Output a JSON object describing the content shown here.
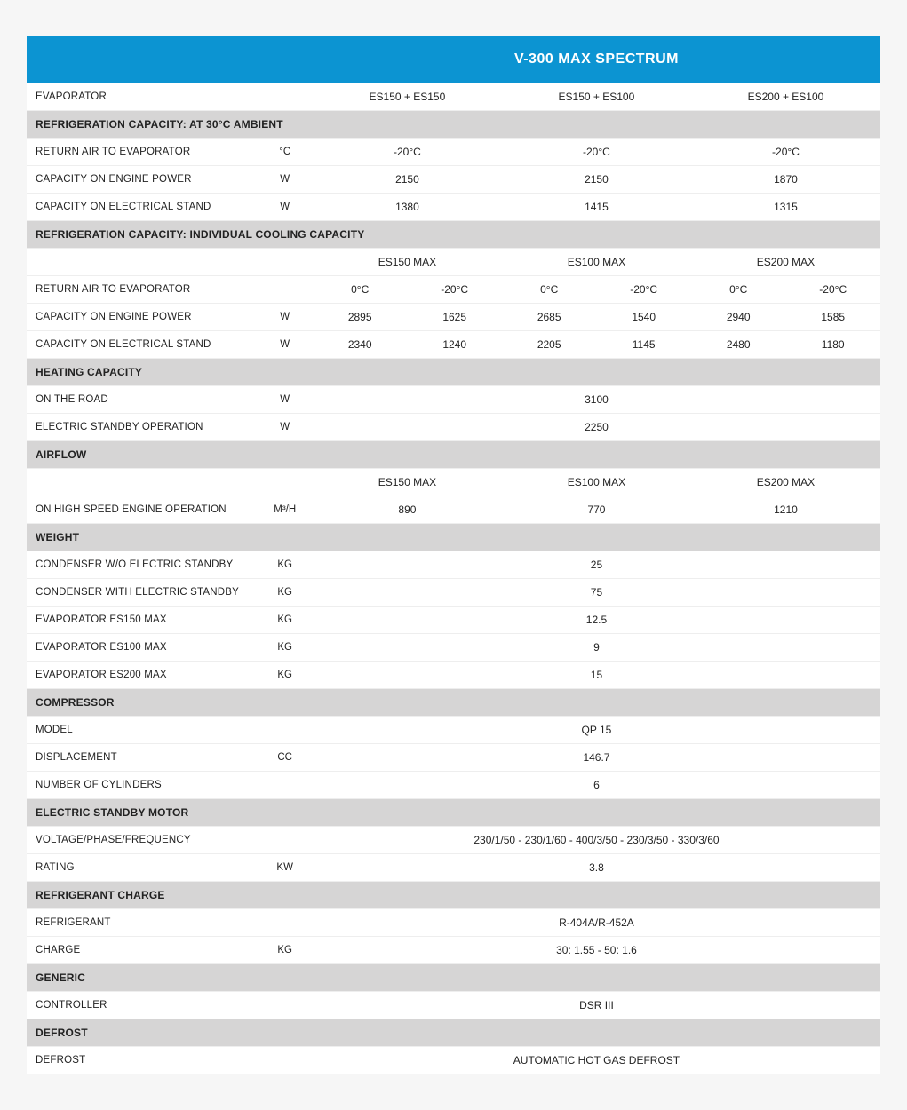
{
  "title": "V-300 MAX SPECTRUM",
  "evaporator": {
    "label": "EVAPORATOR",
    "c1": "ES150 + ES150",
    "c2": "ES150 + ES100",
    "c3": "ES200 + ES100"
  },
  "refcap30": {
    "section": "REFRIGERATION CAPACITY: AT 30°C AMBIENT",
    "return_air": {
      "label": "RETURN AIR TO EVAPORATOR",
      "unit": "°C",
      "c1": "-20°C",
      "c2": "-20°C",
      "c3": "-20°C"
    },
    "cap_engine": {
      "label": "CAPACITY ON ENGINE POWER",
      "unit": "W",
      "c1": "2150",
      "c2": "2150",
      "c3": "1870"
    },
    "cap_elec": {
      "label": "CAPACITY ON ELECTRICAL STAND",
      "unit": "W",
      "c1": "1380",
      "c2": "1415",
      "c3": "1315"
    }
  },
  "refcap_ind": {
    "section": "REFRIGERATION CAPACITY: INDIVIDUAL COOLING CAPACITY",
    "sub": {
      "c1": "ES150 MAX",
      "c2": "ES100 MAX",
      "c3": "ES200 MAX"
    },
    "return_air": {
      "label": "RETURN AIR TO EVAPORATOR",
      "unit": "",
      "c1a": "0°C",
      "c1b": "-20°C",
      "c2a": "0°C",
      "c2b": "-20°C",
      "c3a": "0°C",
      "c3b": "-20°C"
    },
    "cap_engine": {
      "label": "CAPACITY ON ENGINE POWER",
      "unit": "W",
      "c1a": "2895",
      "c1b": "1625",
      "c2a": "2685",
      "c2b": "1540",
      "c3a": "2940",
      "c3b": "1585"
    },
    "cap_elec": {
      "label": "CAPACITY ON ELECTRICAL STAND",
      "unit": "W",
      "c1a": "2340",
      "c1b": "1240",
      "c2a": "2205",
      "c2b": "1145",
      "c3a": "2480",
      "c3b": "1180"
    }
  },
  "heating": {
    "section": "HEATING CAPACITY",
    "road": {
      "label": "ON THE ROAD",
      "unit": "W",
      "v": "3100"
    },
    "standby": {
      "label": "ELECTRIC STANDBY OPERATION",
      "unit": "W",
      "v": "2250"
    }
  },
  "airflow": {
    "section": "AIRFLOW",
    "sub": {
      "c1": "ES150 MAX",
      "c2": "ES100 MAX",
      "c3": "ES200 MAX"
    },
    "high": {
      "label": "ON HIGH SPEED ENGINE OPERATION",
      "unit": "M³/H",
      "c1": "890",
      "c2": "770",
      "c3": "1210"
    }
  },
  "weight": {
    "section": "WEIGHT",
    "cond_wo": {
      "label": "CONDENSER W/O ELECTRIC STANDBY",
      "unit": "KG",
      "v": "25"
    },
    "cond_with": {
      "label": "CONDENSER WITH ELECTRIC STANDBY",
      "unit": "KG",
      "v": "75"
    },
    "e150": {
      "label": "EVAPORATOR ES150 MAX",
      "unit": "KG",
      "v": "12.5"
    },
    "e100": {
      "label": "EVAPORATOR ES100 MAX",
      "unit": "KG",
      "v": "9"
    },
    "e200": {
      "label": "EVAPORATOR ES200 MAX",
      "unit": "KG",
      "v": "15"
    }
  },
  "compressor": {
    "section": "COMPRESSOR",
    "model": {
      "label": "MODEL",
      "unit": "",
      "v": "QP 15"
    },
    "disp": {
      "label": "DISPLACEMENT",
      "unit": "CC",
      "v": "146.7"
    },
    "cyl": {
      "label": "NUMBER OF CYLINDERS",
      "unit": "",
      "v": "6"
    }
  },
  "motor": {
    "section": "ELECTRIC STANDBY MOTOR",
    "vpf": {
      "label": "VOLTAGE/PHASE/FREQUENCY",
      "unit": "",
      "v": "230/1/50 - 230/1/60 - 400/3/50 - 230/3/50 - 330/3/60"
    },
    "rating": {
      "label": "RATING",
      "unit": "KW",
      "v": "3.8"
    }
  },
  "refrigerant": {
    "section": "REFRIGERANT CHARGE",
    "type": {
      "label": "REFRIGERANT",
      "unit": "",
      "v": "R-404A/R-452A"
    },
    "charge": {
      "label": "CHARGE",
      "unit": "KG",
      "v": "30: 1.55 - 50: 1.6"
    }
  },
  "generic": {
    "section": "GENERIC",
    "controller": {
      "label": "CONTROLLER",
      "unit": "",
      "v": "DSR III"
    }
  },
  "defrost": {
    "section": "DEFROST",
    "defrost": {
      "label": "DEFROST",
      "unit": "",
      "v": "AUTOMATIC HOT GAS DEFROST"
    }
  },
  "colors": {
    "header_bg": "#0c94d2",
    "section_bg": "#d6d5d5",
    "page_bg": "#f6f6f6",
    "row_border": "#eeeeee"
  }
}
